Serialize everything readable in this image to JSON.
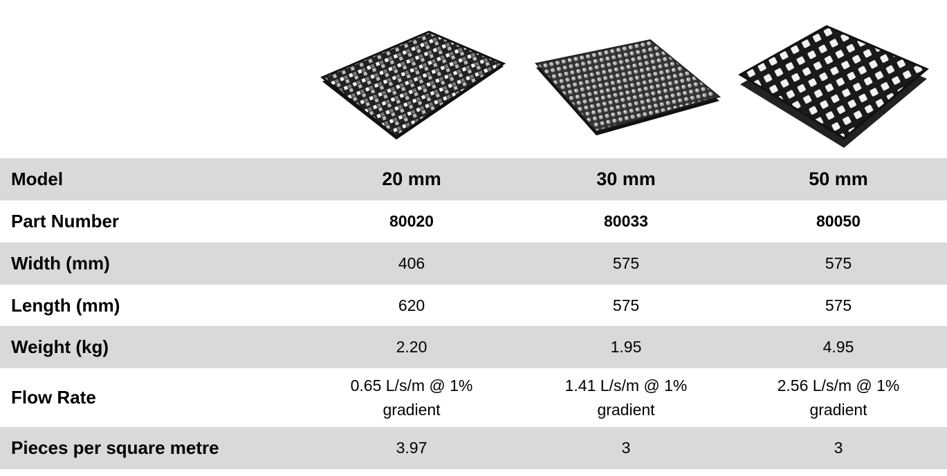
{
  "table": {
    "rows": [
      [
        "Model",
        "20 mm",
        "30 mm",
        "50 mm"
      ],
      [
        "Part Number",
        "80020",
        "80033",
        "80050"
      ],
      [
        "Width (mm)",
        "406",
        "575",
        "575"
      ],
      [
        "Length (mm)",
        "620",
        "575",
        "575"
      ],
      [
        "Weight (kg)",
        "2.20",
        "1.95",
        "4.95"
      ],
      [
        "Flow Rate",
        "0.65 L/s/m @ 1% gradient",
        "1.41 L/s/m @ 1% gradient",
        "2.56 L/s/m @ 1% gradient"
      ],
      [
        "Pieces per square metre",
        "3.97",
        "3",
        "3"
      ]
    ]
  }
}
